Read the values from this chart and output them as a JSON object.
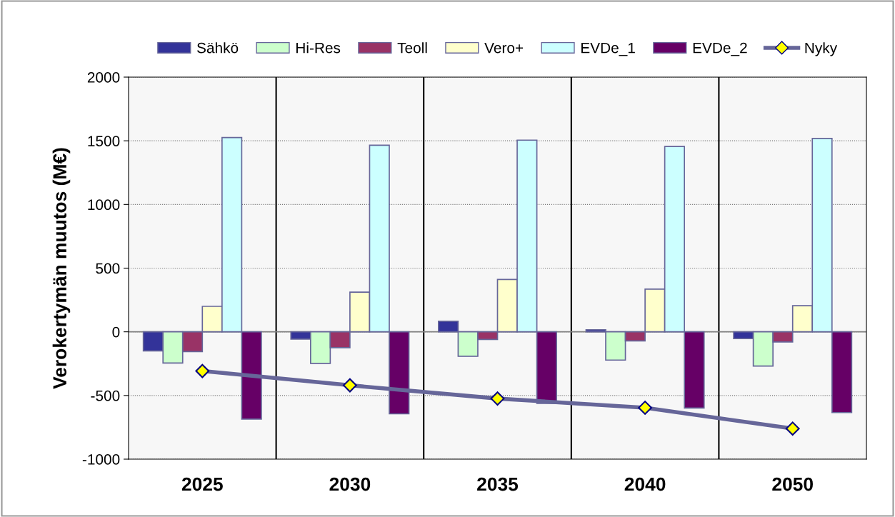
{
  "chart_data": {
    "type": "bar",
    "ylabel": "Verokertymän muutos (M€)",
    "categories": [
      "2025",
      "2030",
      "2035",
      "2040",
      "2050"
    ],
    "series": [
      {
        "name": "Sähkö",
        "color": "#333399",
        "values": [
          -150,
          -57,
          83,
          16,
          -53
        ]
      },
      {
        "name": "Hi-Res",
        "color": "#ccffcc",
        "values": [
          -245,
          -248,
          -192,
          -222,
          -269
        ]
      },
      {
        "name": "Teoll",
        "color": "#993366",
        "values": [
          -155,
          -125,
          -60,
          -71,
          -80
        ]
      },
      {
        "name": "Vero+",
        "color": "#ffffcc",
        "values": [
          200,
          311,
          411,
          335,
          205
        ]
      },
      {
        "name": "EVDe_1",
        "color": "#ccffff",
        "values": [
          1525,
          1465,
          1505,
          1455,
          1518
        ]
      },
      {
        "name": "EVDe_2",
        "color": "#660066",
        "values": [
          -685,
          -644,
          -562,
          -598,
          -634
        ]
      },
      {
        "name": "Nyky",
        "color": "#666699",
        "type": "line",
        "marker": "diamond",
        "values": [
          -308,
          -420,
          -524,
          -596,
          -760
        ]
      }
    ],
    "ylim": [
      -1000,
      2000
    ],
    "yticks": [
      -1000,
      -500,
      0,
      500,
      1000,
      1500,
      2000
    ],
    "grid": true,
    "legend": "top"
  }
}
